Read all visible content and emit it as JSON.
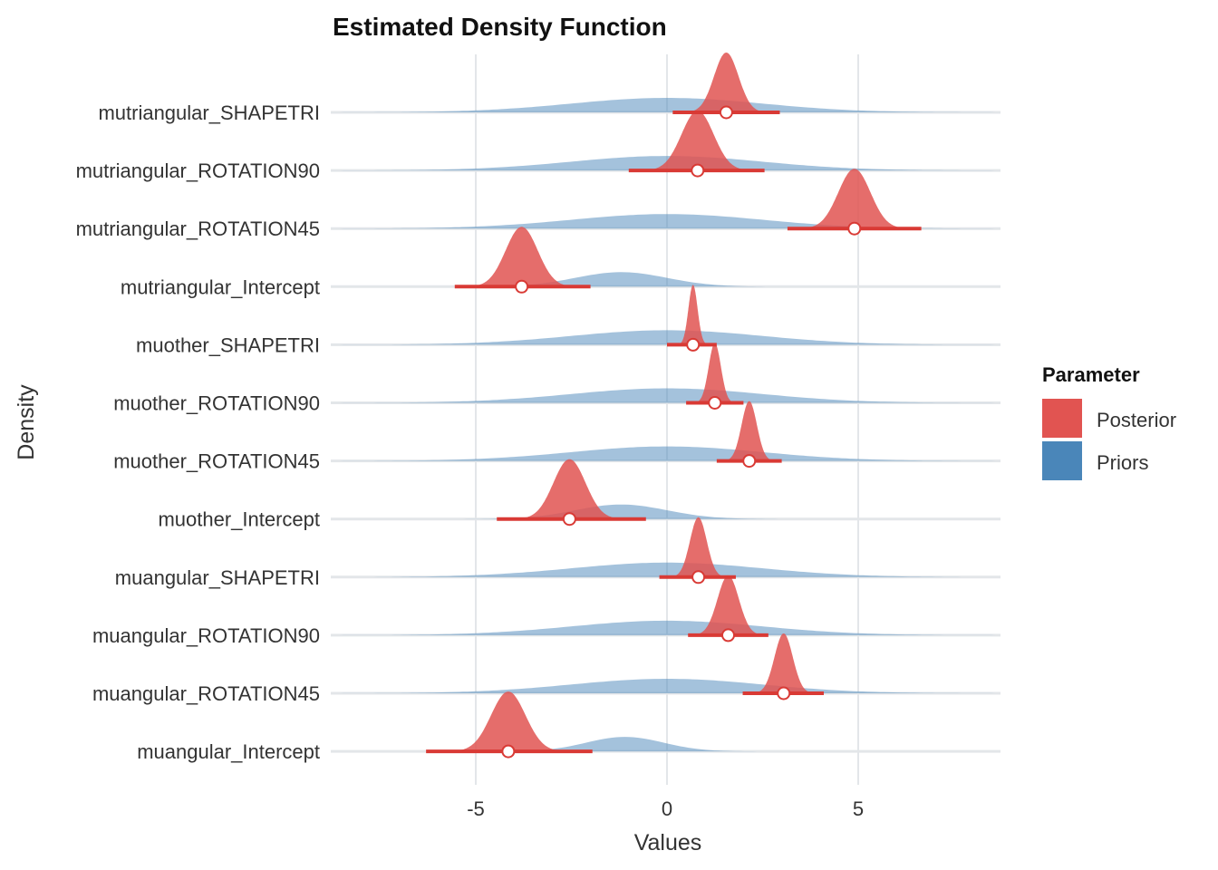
{
  "chart_data": {
    "type": "area",
    "title": "Estimated Density Function",
    "xlabel": "Values",
    "ylabel": "Density",
    "xlim": [
      -9,
      8.8
    ],
    "x_ticks": [
      -5,
      0,
      5
    ],
    "x_tick_labels": [
      "-5",
      "0",
      "5"
    ],
    "grid": true,
    "legend": {
      "title": "Parameter",
      "placement": "right",
      "entries": [
        {
          "label": "Posterior",
          "color": "#e15451"
        },
        {
          "label": "Priors",
          "color": "#4a86b9"
        }
      ]
    },
    "colors": {
      "posterior_fill": "#e15451",
      "prior_fill": "#4a86b9",
      "interval_line": "#d93a35",
      "point_stroke": "#d93a35",
      "point_fill": "#ffffff"
    },
    "categories": [
      "mutriangular_SHAPETRI",
      "mutriangular_ROTATION90",
      "mutriangular_ROTATION45",
      "mutriangular_Intercept",
      "muother_SHAPETRI",
      "muother_ROTATION90",
      "muother_ROTATION45",
      "muother_Intercept",
      "muangular_SHAPETRI",
      "muangular_ROTATION90",
      "muangular_ROTATION45",
      "muangular_Intercept"
    ],
    "priors": [
      {
        "parameter": "mutriangular_SHAPETRI",
        "mean": 0,
        "sd": 2.5
      },
      {
        "parameter": "mutriangular_ROTATION90",
        "mean": 0,
        "sd": 2.5
      },
      {
        "parameter": "mutriangular_ROTATION45",
        "mean": 0,
        "sd": 2.5
      },
      {
        "parameter": "mutriangular_Intercept",
        "mean": -1.2,
        "sd": 1.2
      },
      {
        "parameter": "muother_SHAPETRI",
        "mean": 0,
        "sd": 2.5
      },
      {
        "parameter": "muother_ROTATION90",
        "mean": 0,
        "sd": 2.5
      },
      {
        "parameter": "muother_ROTATION45",
        "mean": 0,
        "sd": 2.5
      },
      {
        "parameter": "muother_Intercept",
        "mean": -1.2,
        "sd": 1.2
      },
      {
        "parameter": "muangular_SHAPETRI",
        "mean": 0,
        "sd": 2.5
      },
      {
        "parameter": "muangular_ROTATION90",
        "mean": 0,
        "sd": 2.5
      },
      {
        "parameter": "muangular_ROTATION45",
        "mean": 0,
        "sd": 2.5
      },
      {
        "parameter": "muangular_Intercept",
        "mean": -1.1,
        "sd": 1.0
      }
    ],
    "posteriors": [
      {
        "parameter": "mutriangular_SHAPETRI",
        "median": 1.55,
        "sd": 0.32,
        "interval": [
          0.15,
          2.95
        ]
      },
      {
        "parameter": "mutriangular_ROTATION90",
        "median": 0.8,
        "sd": 0.42,
        "interval": [
          -1.0,
          2.55
        ]
      },
      {
        "parameter": "mutriangular_ROTATION45",
        "median": 4.9,
        "sd": 0.42,
        "interval": [
          3.15,
          6.65
        ]
      },
      {
        "parameter": "mutriangular_Intercept",
        "median": -3.8,
        "sd": 0.42,
        "interval": [
          -5.55,
          -2.0
        ]
      },
      {
        "parameter": "muother_SHAPETRI",
        "median": 0.68,
        "sd": 0.12,
        "interval": [
          0.0,
          1.3
        ]
      },
      {
        "parameter": "muother_ROTATION90",
        "median": 1.25,
        "sd": 0.16,
        "interval": [
          0.5,
          2.0
        ]
      },
      {
        "parameter": "muother_ROTATION45",
        "median": 2.15,
        "sd": 0.2,
        "interval": [
          1.3,
          3.0
        ]
      },
      {
        "parameter": "muother_Intercept",
        "median": -2.55,
        "sd": 0.42,
        "interval": [
          -4.45,
          -0.55
        ]
      },
      {
        "parameter": "muangular_SHAPETRI",
        "median": 0.82,
        "sd": 0.22,
        "interval": [
          -0.2,
          1.8
        ]
      },
      {
        "parameter": "muangular_ROTATION90",
        "median": 1.6,
        "sd": 0.28,
        "interval": [
          0.55,
          2.65
        ]
      },
      {
        "parameter": "muangular_ROTATION45",
        "median": 3.05,
        "sd": 0.24,
        "interval": [
          1.98,
          4.1
        ]
      },
      {
        "parameter": "muangular_Intercept",
        "median": -4.15,
        "sd": 0.45,
        "interval": [
          -6.3,
          -1.95
        ]
      }
    ]
  }
}
